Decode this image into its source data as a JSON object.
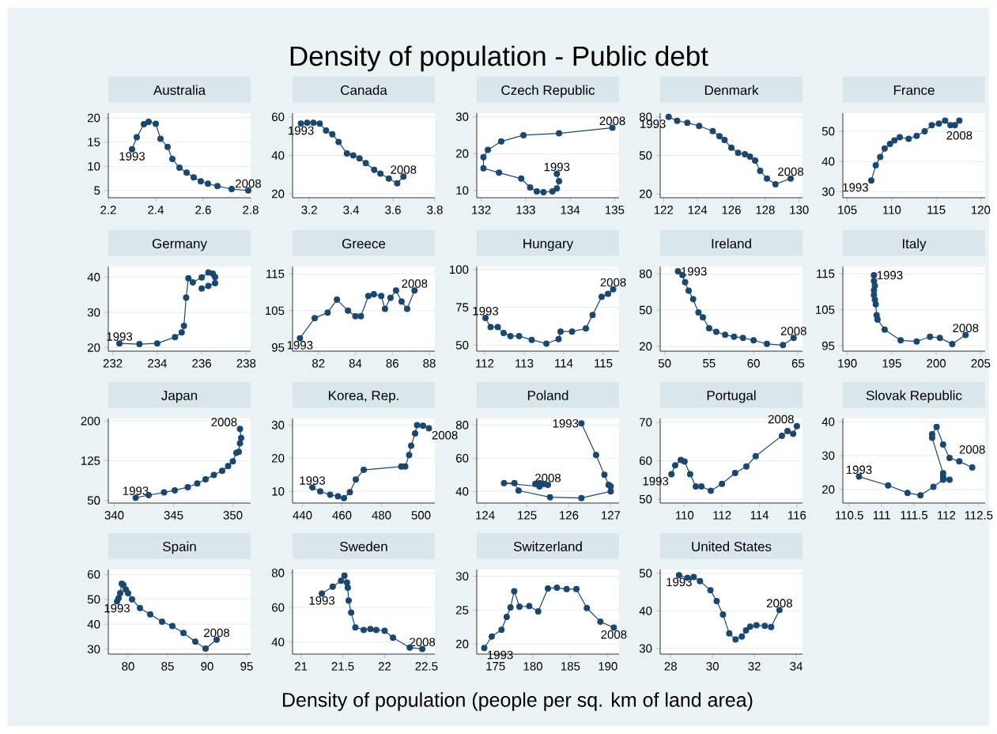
{
  "chart_data": [
    {
      "type": "other",
      "title": "Density of population - Public debt",
      "annotations": [
        "Density of population (people per sq. km of land area)"
      ]
    },
    {
      "type": "line",
      "title": "Australia",
      "color": "#1a476f",
      "marker": "circle",
      "grid": "y",
      "xlim": [
        2.2,
        2.8
      ],
      "xticks": [
        2.2,
        2.4,
        2.6,
        2.8
      ],
      "ylim": [
        3.5,
        21
      ],
      "yticks": [
        5,
        10,
        15,
        20
      ],
      "x": [
        2.3,
        2.32,
        2.35,
        2.37,
        2.4,
        2.42,
        2.45,
        2.47,
        2.5,
        2.53,
        2.56,
        2.59,
        2.62,
        2.66,
        2.72,
        2.79
      ],
      "values": [
        13.5,
        16,
        18.7,
        19.2,
        18.8,
        15.7,
        14,
        11.5,
        9.7,
        8.7,
        7.7,
        6.9,
        6.4,
        5.9,
        5.3,
        5.0
      ],
      "annotations": [
        {
          "text": "1993",
          "x": 2.3,
          "y": 13.5
        },
        {
          "text": "2008",
          "x": 2.79,
          "y": 5.0
        }
      ]
    },
    {
      "type": "line",
      "title": "Canada",
      "color": "#1a476f",
      "marker": "circle",
      "grid": "y",
      "xlim": [
        3.12,
        3.8
      ],
      "xticks": [
        3.2,
        3.4,
        3.6,
        3.8
      ],
      "ylim": [
        18,
        62
      ],
      "yticks": [
        20,
        40,
        60
      ],
      "x": [
        3.16,
        3.19,
        3.22,
        3.25,
        3.28,
        3.31,
        3.34,
        3.38,
        3.41,
        3.44,
        3.47,
        3.51,
        3.54,
        3.58,
        3.62,
        3.65
      ],
      "values": [
        56.5,
        57,
        57,
        56.5,
        53,
        51,
        47,
        41,
        40,
        38.5,
        36,
        32.5,
        30.5,
        28,
        25.5,
        29
      ],
      "annotations": [
        {
          "text": "1993",
          "x": 3.16,
          "y": 56.5
        },
        {
          "text": "2008",
          "x": 3.65,
          "y": 29
        }
      ]
    },
    {
      "type": "line",
      "title": "Czech Republic",
      "color": "#1a476f",
      "marker": "circle",
      "grid": "y",
      "xlim": [
        131.9,
        135.1
      ],
      "xticks": [
        132,
        133,
        134,
        135
      ],
      "ylim": [
        8,
        31
      ],
      "yticks": [
        10,
        20,
        30
      ],
      "x": [
        133.7,
        133.75,
        133.7,
        133.6,
        133.4,
        133.25,
        133.1,
        132.9,
        132.4,
        132.05,
        132.05,
        132.15,
        132.45,
        132.95,
        133.75,
        134.95
      ],
      "values": [
        14.5,
        12.5,
        10.5,
        9.7,
        9.5,
        9.7,
        10.8,
        13.2,
        14.8,
        16,
        19,
        21,
        23.3,
        25,
        25.5,
        27
      ],
      "annotations": [
        {
          "text": "1993",
          "x": 133.7,
          "y": 14.5
        },
        {
          "text": "2008",
          "x": 134.95,
          "y": 27
        }
      ]
    },
    {
      "type": "line",
      "title": "Denmark",
      "color": "#1a476f",
      "marker": "circle",
      "grid": "y",
      "xlim": [
        121.8,
        130.2
      ],
      "xticks": [
        122,
        124,
        126,
        128,
        130
      ],
      "ylim": [
        17,
        83
      ],
      "yticks": [
        20,
        50,
        80
      ],
      "x": [
        122.3,
        122.8,
        123.4,
        124.1,
        124.9,
        125.3,
        125.6,
        126.0,
        126.4,
        126.8,
        127.1,
        127.4,
        127.7,
        128.1,
        128.6,
        129.5
      ],
      "values": [
        80,
        77,
        75.5,
        73,
        69,
        65,
        62,
        56,
        52,
        51,
        49,
        46,
        38,
        32,
        27.5,
        32
      ],
      "annotations": [
        {
          "text": "1993",
          "x": 122.3,
          "y": 80
        },
        {
          "text": "2008",
          "x": 129.5,
          "y": 32
        }
      ]
    },
    {
      "type": "line",
      "title": "France",
      "color": "#1a476f",
      "marker": "circle",
      "grid": "y",
      "xlim": [
        104.5,
        120.5
      ],
      "xticks": [
        105,
        110,
        115,
        120
      ],
      "ylim": [
        28,
        56
      ],
      "yticks": [
        30,
        40,
        50
      ],
      "x": [
        107.7,
        108.2,
        108.7,
        109.2,
        109.8,
        110.3,
        110.9,
        111.9,
        112.8,
        113.7,
        114.5,
        115.3,
        116.0,
        116.6,
        117.1,
        117.6
      ],
      "values": [
        33.7,
        38.7,
        41.5,
        44.3,
        45.8,
        47,
        48,
        47.5,
        48.5,
        50,
        52,
        52.5,
        53.5,
        52,
        52,
        53.5
      ],
      "annotations": [
        {
          "text": "1993",
          "x": 107.7,
          "y": 33.7
        },
        {
          "text": "2008",
          "x": 117.6,
          "y": 53.5
        }
      ]
    },
    {
      "type": "line",
      "title": "Germany",
      "color": "#1a476f",
      "marker": "circle",
      "grid": "y",
      "xlim": [
        231.8,
        238.2
      ],
      "xticks": [
        232,
        234,
        236,
        238
      ],
      "ylim": [
        19,
        43
      ],
      "yticks": [
        20,
        30,
        40
      ],
      "x": [
        232.3,
        233.2,
        234.0,
        234.8,
        235.1,
        235.2,
        235.3,
        235.4,
        235.6,
        236.0,
        236.3,
        236.5,
        236.6,
        236.6,
        236.3,
        236.0
      ],
      "values": [
        21.2,
        21.0,
        21.2,
        23.0,
        24.3,
        26.2,
        34.2,
        39.7,
        38.5,
        39.9,
        41.3,
        41.0,
        40.0,
        38.3,
        37.5,
        36.8
      ],
      "annotations": [
        {
          "text": "1993",
          "x": 232.3,
          "y": 21.2
        }
      ]
    },
    {
      "type": "line",
      "title": "Greece",
      "color": "#1a476f",
      "marker": "circle",
      "grid": "y",
      "xlim": [
        80.6,
        88.3
      ],
      "xticks": [
        82,
        84,
        86,
        88
      ],
      "ylim": [
        94,
        117
      ],
      "yticks": [
        95,
        105,
        115
      ],
      "x": [
        81.0,
        81.8,
        82.5,
        83.0,
        83.6,
        84.0,
        84.3,
        84.7,
        85.0,
        85.4,
        85.6,
        85.9,
        86.2,
        86.5,
        86.8,
        87.2
      ],
      "values": [
        97.5,
        103,
        104.5,
        108,
        105,
        103.5,
        103.5,
        109,
        109.5,
        109,
        105.5,
        108.5,
        110.5,
        107.5,
        105.5,
        110.5
      ],
      "annotations": [
        {
          "text": "1993",
          "x": 81.0,
          "y": 97.5
        },
        {
          "text": "2008",
          "x": 87.2,
          "y": 110.5
        }
      ]
    },
    {
      "type": "line",
      "title": "Hungary",
      "color": "#1a476f",
      "marker": "circle",
      "grid": "y",
      "xlim": [
        111.8,
        115.4
      ],
      "xticks": [
        112,
        113,
        114,
        115
      ],
      "ylim": [
        46,
        102
      ],
      "yticks": [
        50,
        75,
        100
      ],
      "x": [
        112.02,
        112.15,
        112.33,
        112.48,
        112.65,
        112.87,
        113.19,
        113.56,
        113.87,
        113.92,
        114.21,
        114.56,
        114.73,
        114.96,
        115.12,
        115.25
      ],
      "values": [
        68,
        62,
        62,
        58,
        56,
        56,
        53.5,
        51,
        54,
        59,
        59,
        61,
        70,
        82,
        84,
        87
      ],
      "annotations": [
        {
          "text": "1993",
          "x": 112.02,
          "y": 68
        },
        {
          "text": "2008",
          "x": 115.25,
          "y": 87
        }
      ]
    },
    {
      "type": "line",
      "title": "Ireland",
      "color": "#1a476f",
      "marker": "circle",
      "grid": "y",
      "xlim": [
        49.5,
        65.5
      ],
      "xticks": [
        50,
        55,
        60,
        65
      ],
      "ylim": [
        16,
        86
      ],
      "yticks": [
        20,
        50,
        80
      ],
      "x": [
        51.5,
        52.0,
        52.3,
        52.7,
        53.2,
        53.8,
        54.3,
        55.0,
        55.8,
        56.8,
        57.8,
        58.8,
        60.0,
        61.5,
        63.3,
        64.5
      ],
      "values": [
        82,
        79,
        73,
        66,
        59,
        48,
        44,
        35,
        32,
        29.5,
        28,
        27,
        25,
        22,
        21,
        27
      ],
      "annotations": [
        {
          "text": "1993",
          "x": 51.5,
          "y": 82
        },
        {
          "text": "2008",
          "x": 64.5,
          "y": 27
        }
      ]
    },
    {
      "type": "line",
      "title": "Italy",
      "color": "#1a476f",
      "marker": "circle",
      "grid": "y",
      "xlim": [
        189.5,
        205.5
      ],
      "xticks": [
        190,
        195,
        200,
        205
      ],
      "ylim": [
        93.5,
        117
      ],
      "yticks": [
        95,
        105,
        115
      ],
      "x": [
        193.0,
        193.0,
        193.1,
        193.0,
        193.0,
        193.1,
        193.2,
        193.3,
        193.4,
        194.2,
        196.0,
        197.8,
        199.3,
        200.4,
        201.8,
        203.3
      ],
      "values": [
        114.6,
        113,
        111.7,
        110.4,
        109.1,
        107.8,
        106.5,
        103.5,
        102.3,
        99.5,
        96.5,
        96.2,
        97.5,
        97.2,
        95.5,
        98
      ],
      "annotations": [
        {
          "text": "1993",
          "x": 193.0,
          "y": 114.6
        },
        {
          "text": "2008",
          "x": 203.3,
          "y": 98
        }
      ]
    },
    {
      "type": "line",
      "title": "Japan",
      "color": "#1a476f",
      "marker": "circle",
      "grid": "y",
      "xlim": [
        339.5,
        351.5
      ],
      "xticks": [
        340,
        345,
        350
      ],
      "ylim": [
        45,
        205
      ],
      "yticks": [
        50,
        125,
        200
      ],
      "x": [
        341.8,
        342.9,
        344.2,
        345.1,
        346.2,
        347.0,
        347.7,
        348.4,
        349.1,
        349.6,
        350.0,
        350.3,
        350.5,
        350.6,
        350.7,
        350.6
      ],
      "values": [
        55,
        60,
        65,
        69,
        75,
        82,
        90,
        98,
        106,
        115,
        124,
        140,
        142,
        158,
        168,
        185
      ],
      "annotations": [
        {
          "text": "1993",
          "x": 341.8,
          "y": 55
        },
        {
          "text": "2008",
          "x": 350.6,
          "y": 185
        }
      ]
    },
    {
      "type": "line",
      "title": "Korea, Rep.",
      "color": "#1a476f",
      "marker": "circle",
      "grid": "y",
      "xlim": [
        435,
        507
      ],
      "xticks": [
        440,
        460,
        480,
        500
      ],
      "ylim": [
        6.5,
        32
      ],
      "yticks": [
        10,
        20,
        30
      ],
      "x": [
        445,
        449,
        454,
        458,
        461,
        464,
        467,
        471,
        490,
        492,
        494,
        495,
        497,
        498,
        501,
        504
      ],
      "values": [
        11.2,
        10,
        9,
        8.5,
        8,
        9.8,
        13.6,
        16.5,
        17.5,
        17.5,
        21,
        23.8,
        27.5,
        30,
        29.8,
        29
      ],
      "annotations": [
        {
          "text": "1993",
          "x": 445,
          "y": 11.2
        },
        {
          "text": "2008",
          "x": 504,
          "y": 29
        }
      ]
    },
    {
      "type": "line",
      "title": "Poland",
      "color": "#1a476f",
      "marker": "circle",
      "grid": "y",
      "xlim": [
        123.8,
        127.2
      ],
      "xticks": [
        124,
        125,
        126,
        127
      ],
      "ylim": [
        33,
        84
      ],
      "yticks": [
        40,
        60,
        80
      ],
      "x": [
        126.3,
        126.65,
        126.85,
        126.95,
        127.0,
        127.0,
        126.3,
        125.55,
        124.8,
        124.7,
        124.45,
        125.3,
        125.3,
        125.4,
        125.2,
        125.5
      ],
      "values": [
        81,
        62,
        50,
        44,
        43,
        40,
        36,
        36.5,
        40.5,
        45,
        45,
        43,
        45,
        44.5,
        44.5,
        44
      ],
      "annotations": [
        {
          "text": "1993",
          "x": 126.3,
          "y": 81
        },
        {
          "text": "2008",
          "x": 125.5,
          "y": 44
        }
      ]
    },
    {
      "type": "line",
      "title": "Portugal",
      "color": "#1a476f",
      "marker": "circle",
      "grid": "y",
      "xlim": [
        108.7,
        116.3
      ],
      "xticks": [
        110,
        112,
        114,
        116
      ],
      "ylim": [
        49,
        71
      ],
      "yticks": [
        50,
        60,
        70
      ],
      "x": [
        109.3,
        109.5,
        109.8,
        110.0,
        110.3,
        110.6,
        110.9,
        111.4,
        112.0,
        112.7,
        113.3,
        113.8,
        115.2,
        115.5,
        115.8,
        116.0
      ],
      "values": [
        56.5,
        58.8,
        60.2,
        59.8,
        56.5,
        53.3,
        53.3,
        52.2,
        54,
        56.8,
        58.5,
        61.2,
        66.5,
        67.7,
        67,
        69
      ],
      "annotations": [
        {
          "text": "1993",
          "x": 109.3,
          "y": 56.5
        },
        {
          "text": "2008",
          "x": 116.0,
          "y": 69
        }
      ]
    },
    {
      "type": "line",
      "title": "Slovak Republic",
      "color": "#1a476f",
      "marker": "circle",
      "grid": "y",
      "xlim": [
        110.4,
        112.6
      ],
      "xticks": [
        110.5,
        111,
        111.5,
        112,
        112.5
      ],
      "ylim": [
        16,
        41
      ],
      "yticks": [
        20,
        30,
        40
      ],
      "x": [
        110.65,
        111.1,
        111.4,
        111.6,
        111.8,
        111.95,
        112.05,
        111.95,
        111.95,
        111.78,
        111.78,
        111.85,
        111.95,
        112.05,
        112.2,
        112.4
      ],
      "values": [
        23.8,
        21.2,
        19,
        18.3,
        20.8,
        22.9,
        22.9,
        23.8,
        24.8,
        35.3,
        36.3,
        38.5,
        33.3,
        29.3,
        28.3,
        26.5
      ],
      "annotations": [
        {
          "text": "1993",
          "x": 110.65,
          "y": 23.8
        },
        {
          "text": "2008",
          "x": 112.4,
          "y": 26.5
        }
      ]
    },
    {
      "type": "line",
      "title": "Spain",
      "color": "#1a476f",
      "marker": "circle",
      "grid": "y",
      "xlim": [
        77.5,
        95.5
      ],
      "xticks": [
        80,
        85,
        90,
        95
      ],
      "ylim": [
        28,
        62
      ],
      "yticks": [
        30,
        40,
        50,
        60
      ],
      "x": [
        78.6,
        78.8,
        79.0,
        79.2,
        79.4,
        79.7,
        80.0,
        80.5,
        81.5,
        82.8,
        84.3,
        85.6,
        87.0,
        88.5,
        89.8,
        91.2
      ],
      "values": [
        49.2,
        50.5,
        52.5,
        56.3,
        55.8,
        54,
        52.5,
        50,
        46.5,
        44,
        41,
        39.3,
        36.5,
        33,
        30.2,
        33.8
      ],
      "annotations": [
        {
          "text": "1993",
          "x": 78.6,
          "y": 49.2
        },
        {
          "text": "2008",
          "x": 91.2,
          "y": 33.8
        }
      ]
    },
    {
      "type": "line",
      "title": "Sweden",
      "color": "#1a476f",
      "marker": "circle",
      "grid": "y",
      "xlim": [
        20.9,
        22.6
      ],
      "xticks": [
        21,
        21.5,
        22,
        22.5
      ],
      "ylim": [
        33,
        82
      ],
      "yticks": [
        40,
        60,
        80
      ],
      "x": [
        21.25,
        21.38,
        21.48,
        21.52,
        21.55,
        21.56,
        21.57,
        21.6,
        21.65,
        21.75,
        21.83,
        21.9,
        22.0,
        22.1,
        22.3,
        22.45
      ],
      "values": [
        68,
        72,
        75.5,
        78.5,
        74.5,
        71.5,
        64,
        57,
        48.5,
        47,
        47.5,
        47,
        46.5,
        42.5,
        36.8,
        36
      ],
      "annotations": [
        {
          "text": "1993",
          "x": 21.25,
          "y": 68
        },
        {
          "text": "2008",
          "x": 22.45,
          "y": 36
        }
      ]
    },
    {
      "type": "line",
      "title": "Switzerland",
      "color": "#1a476f",
      "marker": "circle",
      "grid": "y",
      "xlim": [
        172.5,
        191.5
      ],
      "xticks": [
        175,
        180,
        185,
        190
      ],
      "ylim": [
        18.5,
        31
      ],
      "yticks": [
        20,
        25,
        30
      ],
      "x": [
        173.5,
        174.5,
        175.8,
        176.5,
        177.0,
        177.5,
        178.2,
        179.5,
        180.7,
        182.0,
        183.2,
        184.5,
        185.8,
        187.2,
        189.0,
        190.8
      ],
      "values": [
        19.4,
        21.1,
        22.1,
        24,
        25.4,
        27.8,
        25.5,
        25.6,
        24.8,
        28.2,
        28.3,
        28.1,
        28.1,
        25.3,
        23.3,
        22.4
      ],
      "annotations": [
        {
          "text": "1993",
          "x": 173.5,
          "y": 19.4
        },
        {
          "text": "2008",
          "x": 190.8,
          "y": 22.4
        }
      ]
    },
    {
      "type": "line",
      "title": "United States",
      "color": "#1a476f",
      "marker": "circle",
      "grid": "y",
      "xlim": [
        27.5,
        34.3
      ],
      "xticks": [
        28,
        30,
        32,
        34
      ],
      "ylim": [
        28.5,
        51
      ],
      "yticks": [
        30,
        40,
        50
      ],
      "x": [
        28.4,
        28.8,
        29.1,
        29.4,
        29.9,
        30.2,
        30.5,
        30.8,
        31.1,
        31.4,
        31.6,
        31.8,
        32.1,
        32.5,
        32.8,
        33.2
      ],
      "values": [
        49.5,
        48.8,
        49,
        47.9,
        45.5,
        42.6,
        39,
        34,
        32.4,
        33.2,
        34.8,
        35.8,
        36.2,
        36,
        35.7,
        40.2
      ],
      "annotations": [
        {
          "text": "1993",
          "x": 28.4,
          "y": 49.5
        },
        {
          "text": "2008",
          "x": 33.2,
          "y": 40.2
        }
      ]
    }
  ]
}
